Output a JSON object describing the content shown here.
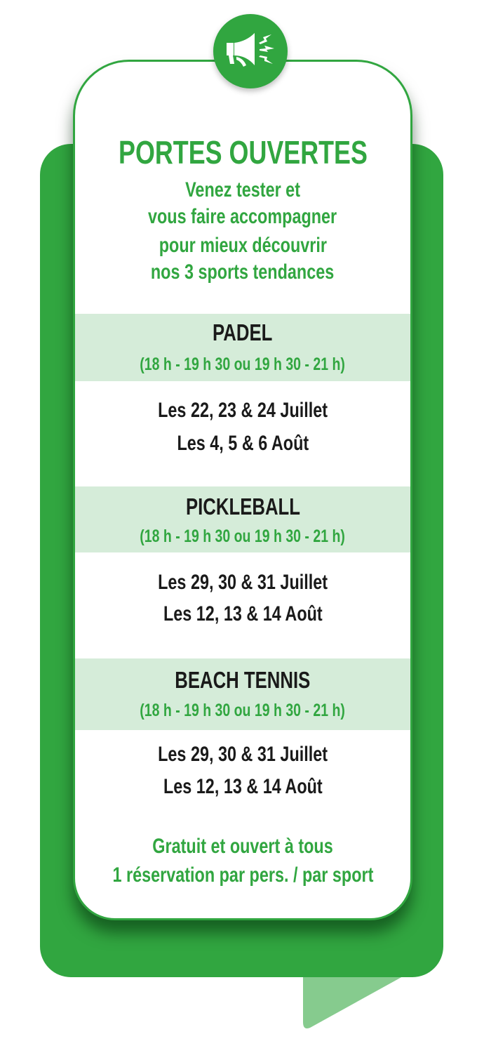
{
  "colors": {
    "brand_green": "#31a640",
    "band_green": "#d5ecd9",
    "tail_green": "#86cb8e",
    "text_dark": "#1a1a1a"
  },
  "icon": "megaphone-icon",
  "header": {
    "title": "PORTES OUVERTES",
    "subtitle_lines": [
      "Venez tester et",
      "vous faire accompagner",
      "pour mieux découvrir",
      "nos 3 sports tendances"
    ]
  },
  "sports": [
    {
      "name": "PADEL",
      "hours": "(18 h - 19 h 30 ou 19 h 30 - 21 h)",
      "dates": [
        "Les 22, 23 & 24 Juillet",
        "Les 4, 5 & 6 Août"
      ]
    },
    {
      "name": "PICKLEBALL",
      "hours": "(18 h - 19 h 30 ou 19 h 30 - 21 h)",
      "dates": [
        "Les 29, 30 & 31 Juillet",
        "Les 12, 13 & 14 Août"
      ]
    },
    {
      "name": "BEACH TENNIS",
      "hours": "(18 h - 19 h 30 ou 19 h 30 - 21 h)",
      "dates": [
        "Les 29, 30 & 31 Juillet",
        "Les 12, 13 & 14 Août"
      ]
    }
  ],
  "footer": {
    "lines": [
      "Gratuit et ouvert à tous",
      "1 réservation par pers. / par sport"
    ]
  }
}
